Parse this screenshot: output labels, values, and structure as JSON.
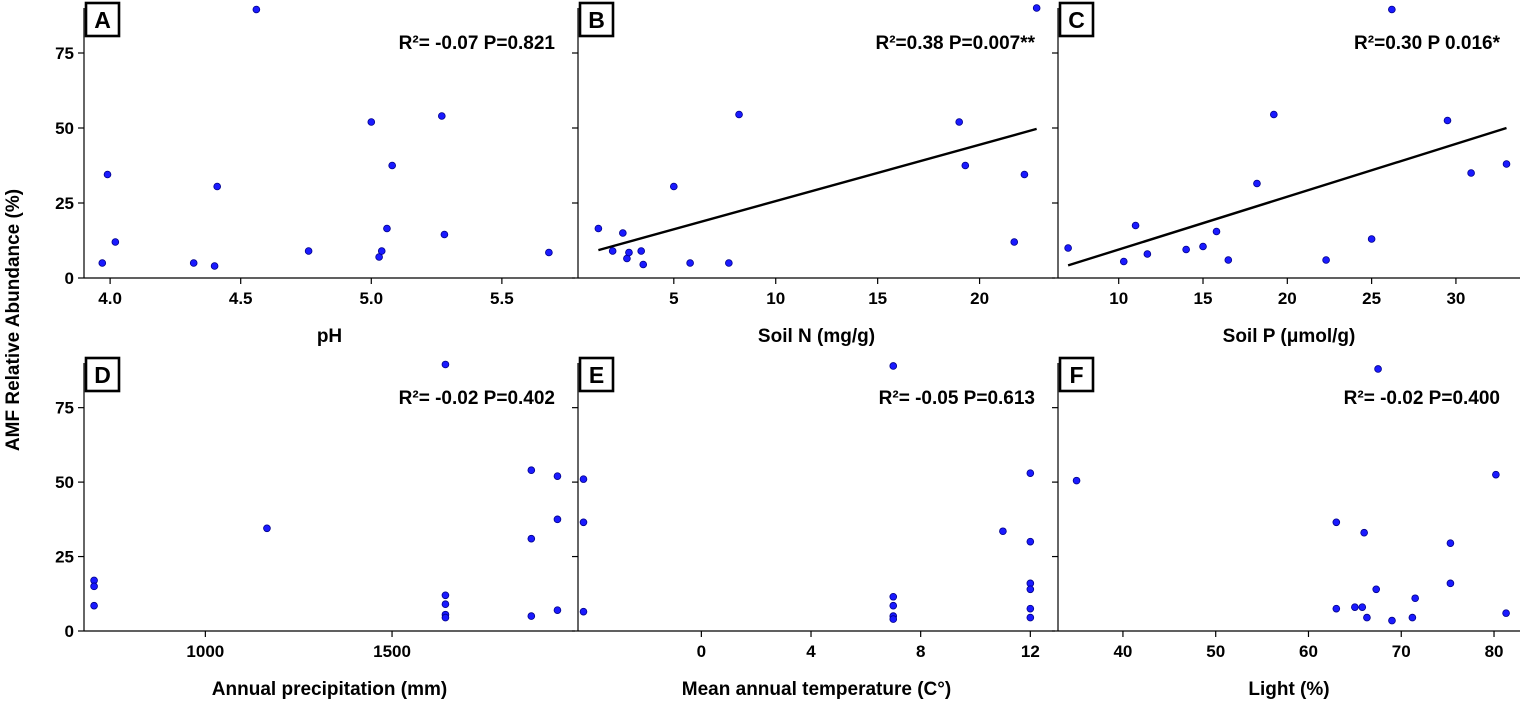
{
  "figure": {
    "y_label": "AMF Relative Abundance (%)",
    "point_color": "#1a1aff",
    "point_edge": "#00008b",
    "line_color": "#000000"
  },
  "chart_data": [
    {
      "type": "scatter",
      "panel_label": "A",
      "title": "",
      "xlabel": "pH",
      "ylabel": "AMF Relative Abundance (%)",
      "annotation": "R²= -0.07 P=0.821",
      "xlim": [
        3.9,
        5.78
      ],
      "ylim": [
        0,
        90
      ],
      "xticks": [
        4.0,
        4.5,
        5.0,
        5.5
      ],
      "xtick_labels": [
        "4.0",
        "4.5",
        "5.0",
        "5.5"
      ],
      "yticks": [
        0,
        25,
        50,
        75
      ],
      "ytick_labels": [
        "0",
        "25",
        "50",
        "75"
      ],
      "show_yticklabels": true,
      "points": [
        [
          3.97,
          5
        ],
        [
          3.99,
          34.5
        ],
        [
          4.02,
          12
        ],
        [
          4.32,
          5
        ],
        [
          4.4,
          4
        ],
        [
          4.41,
          30.5
        ],
        [
          4.56,
          89.5
        ],
        [
          4.76,
          9
        ],
        [
          5.0,
          52
        ],
        [
          5.03,
          7
        ],
        [
          5.04,
          9
        ],
        [
          5.06,
          16.5
        ],
        [
          5.08,
          37.5
        ],
        [
          5.27,
          54
        ],
        [
          5.28,
          14.5
        ],
        [
          5.68,
          8.5
        ]
      ],
      "fit_line": null
    },
    {
      "type": "scatter",
      "panel_label": "B",
      "title": "",
      "xlabel": "Soil N (mg/g)",
      "ylabel": "",
      "annotation": "R²=0.38 P=0.007**",
      "xlim": [
        0.3,
        23.7
      ],
      "ylim": [
        0,
        90
      ],
      "xticks": [
        5,
        10,
        15,
        20
      ],
      "xtick_labels": [
        "5",
        "10",
        "15",
        "20"
      ],
      "yticks": [
        0,
        25,
        50,
        75
      ],
      "ytick_labels": [
        "",
        "",
        "",
        ""
      ],
      "show_yticklabels": false,
      "points": [
        [
          1.3,
          16.5
        ],
        [
          2.0,
          9
        ],
        [
          2.5,
          15
        ],
        [
          2.7,
          6.5
        ],
        [
          2.8,
          8.5
        ],
        [
          3.4,
          9
        ],
        [
          3.5,
          4.5
        ],
        [
          5.0,
          30.5
        ],
        [
          5.8,
          5
        ],
        [
          7.7,
          5
        ],
        [
          8.2,
          54.5
        ],
        [
          19.0,
          52
        ],
        [
          19.3,
          37.5
        ],
        [
          21.7,
          12
        ],
        [
          22.2,
          34.5
        ],
        [
          22.8,
          90
        ]
      ],
      "fit_line": [
        [
          1.3,
          9.3
        ],
        [
          22.8,
          49.7
        ]
      ]
    },
    {
      "type": "scatter",
      "panel_label": "C",
      "title": "",
      "xlabel": "Soil P (μmol/g)",
      "ylabel": "",
      "annotation": "R²=0.30 P 0.016*",
      "xlim": [
        6.4,
        33.8
      ],
      "ylim": [
        0,
        90
      ],
      "xticks": [
        10,
        15,
        20,
        25,
        30
      ],
      "xtick_labels": [
        "10",
        "15",
        "20",
        "25",
        "30"
      ],
      "yticks": [
        0,
        25,
        50,
        75
      ],
      "ytick_labels": [
        "",
        "",
        "",
        ""
      ],
      "show_yticklabels": false,
      "points": [
        [
          7.0,
          10
        ],
        [
          10.3,
          5.5
        ],
        [
          11.0,
          17.5
        ],
        [
          11.7,
          8
        ],
        [
          14.0,
          9.5
        ],
        [
          15.0,
          10.5
        ],
        [
          15.8,
          15.5
        ],
        [
          16.5,
          6
        ],
        [
          18.2,
          31.5
        ],
        [
          19.2,
          54.5
        ],
        [
          22.3,
          6
        ],
        [
          25.0,
          13
        ],
        [
          26.2,
          89.5
        ],
        [
          29.5,
          52.5
        ],
        [
          30.9,
          35
        ],
        [
          33.0,
          38
        ]
      ],
      "fit_line": [
        [
          7.0,
          4.2
        ],
        [
          33.0,
          50.0
        ]
      ]
    },
    {
      "type": "scatter",
      "panel_label": "D",
      "title": "",
      "xlabel": "Annual precipitation (mm)",
      "ylabel": "",
      "annotation": "R²= -0.02  P=0.402",
      "xlim": [
        675,
        1990
      ],
      "ylim": [
        0,
        90
      ],
      "xticks": [
        1000,
        1500
      ],
      "xtick_labels": [
        "1000",
        "1500"
      ],
      "yticks": [
        0,
        25,
        50,
        75
      ],
      "ytick_labels": [
        "0",
        "25",
        "50",
        "75"
      ],
      "show_yticklabels": true,
      "points": [
        [
          702,
          17
        ],
        [
          702,
          15
        ],
        [
          702,
          8.5
        ],
        [
          1165,
          34.5
        ],
        [
          1643,
          12
        ],
        [
          1643,
          9
        ],
        [
          1643,
          5.5
        ],
        [
          1643,
          4.5
        ],
        [
          1873,
          54
        ],
        [
          1873,
          31
        ],
        [
          1873,
          5
        ],
        [
          1943,
          52
        ],
        [
          1943,
          37.5
        ],
        [
          1943,
          7
        ],
        [
          1643,
          89.5
        ]
      ],
      "fit_line": null
    },
    {
      "type": "scatter",
      "panel_label": "E",
      "title": "",
      "xlabel": "Mean annual temperature (C°)",
      "ylabel": "",
      "annotation": "R²= -0.05 P=0.613",
      "xlim": [
        -4.5,
        12.9
      ],
      "ylim": [
        0,
        90
      ],
      "xticks": [
        0,
        4,
        8,
        12
      ],
      "xtick_labels": [
        "0",
        "4",
        "8",
        "12"
      ],
      "yticks": [
        0,
        25,
        50,
        75
      ],
      "ytick_labels": [
        "",
        "",
        "",
        ""
      ],
      "show_yticklabels": false,
      "points": [
        [
          -4.3,
          51
        ],
        [
          -4.3,
          36.5
        ],
        [
          -4.3,
          6.5
        ],
        [
          7.0,
          89
        ],
        [
          7.0,
          11.5
        ],
        [
          7.0,
          8.5
        ],
        [
          7.0,
          5
        ],
        [
          7.0,
          4
        ],
        [
          11.0,
          33.5
        ],
        [
          12.0,
          53
        ],
        [
          12.0,
          30
        ],
        [
          12.0,
          16
        ],
        [
          12.0,
          14
        ],
        [
          12.0,
          7.5
        ],
        [
          12.0,
          4.5
        ]
      ],
      "fit_line": null
    },
    {
      "type": "scatter",
      "panel_label": "F",
      "title": "",
      "xlabel": "Light (%)",
      "ylabel": "",
      "annotation": "R²= -0.02 P=0.400",
      "xlim": [
        33.0,
        82.8
      ],
      "ylim": [
        0,
        90
      ],
      "xticks": [
        40,
        50,
        60,
        70,
        80
      ],
      "xtick_labels": [
        "40",
        "50",
        "60",
        "70",
        "80"
      ],
      "yticks": [
        0,
        25,
        50,
        75
      ],
      "ytick_labels": [
        "",
        "",
        "",
        ""
      ],
      "show_yticklabels": false,
      "points": [
        [
          35.0,
          50.5
        ],
        [
          63.0,
          36.5
        ],
        [
          63.0,
          7.5
        ],
        [
          65.0,
          8
        ],
        [
          65.8,
          8
        ],
        [
          66.0,
          33
        ],
        [
          66.3,
          4.5
        ],
        [
          67.3,
          14
        ],
        [
          67.5,
          88
        ],
        [
          69.0,
          3.5
        ],
        [
          71.2,
          4.5
        ],
        [
          71.5,
          11
        ],
        [
          75.3,
          29.5
        ],
        [
          75.3,
          16
        ],
        [
          80.2,
          52.5
        ],
        [
          81.3,
          6
        ]
      ],
      "fit_line": null
    }
  ]
}
